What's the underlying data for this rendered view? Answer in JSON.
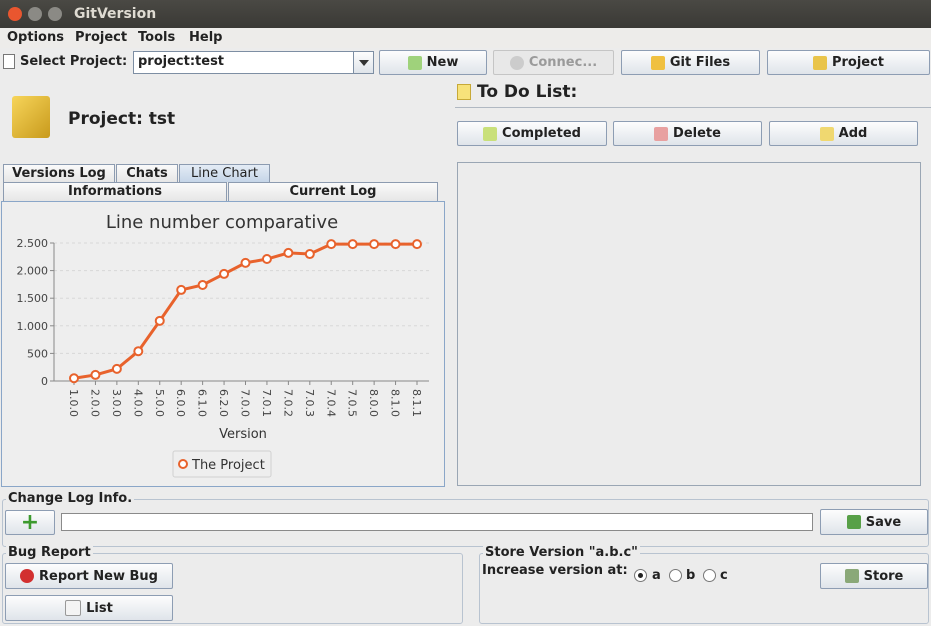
{
  "window": {
    "title": "GitVersion"
  },
  "menu": [
    "Options",
    "Project",
    "Tools",
    "Help"
  ],
  "toolbar": {
    "select_label": "Select Project:",
    "select_value": "project:test",
    "buttons": [
      "New",
      "Connec...",
      "Git Files",
      "Project"
    ]
  },
  "project": {
    "title": "Project: tst"
  },
  "tabs": {
    "row1": [
      "Versions Log",
      "Chats",
      "Line Chart"
    ],
    "row2": [
      "Informations",
      "Current Log"
    ]
  },
  "todo": {
    "title": "To Do List:",
    "buttons": [
      "Completed",
      "Delete",
      "Add"
    ]
  },
  "changelog": {
    "title": "Change Log Info.",
    "save": "Save"
  },
  "bug_report": {
    "title": "Bug Report",
    "buttons": [
      "Report New Bug",
      "List"
    ]
  },
  "store_version": {
    "title": "Store Version \"a.b.c\"",
    "label": "Increase version at:",
    "options": [
      "a",
      "b",
      "c"
    ],
    "button": "Store"
  },
  "chart_data": {
    "type": "line",
    "title": "Line number comparative",
    "x_label": "Version",
    "categories": [
      "1.0.0",
      "2.0.0",
      "3.0.0",
      "4.0.0",
      "5.0.0",
      "6.0.0",
      "6.1.0",
      "6.2.0",
      "7.0.0",
      "7.0.1",
      "7.0.2",
      "7.0.3",
      "7.0.4",
      "7.0.5",
      "8.0.0",
      "8.1.0",
      "8.1.1"
    ],
    "series": [
      {
        "name": "The Project",
        "color": "#e8622c",
        "values": [
          50,
          110,
          220,
          540,
          1090,
          1650,
          1740,
          1940,
          2140,
          2210,
          2320,
          2300,
          2480,
          2480,
          2480,
          2480,
          2480
        ]
      }
    ],
    "ylim": [
      0,
      2500
    ],
    "yticks": [
      0,
      500,
      {
        "value": 1000,
        "label": "1.000"
      },
      {
        "value": 1500,
        "label": "1.500"
      },
      {
        "value": 2000,
        "label": "2.000"
      },
      {
        "value": 2500,
        "label": "2.500"
      }
    ],
    "grid": true
  }
}
